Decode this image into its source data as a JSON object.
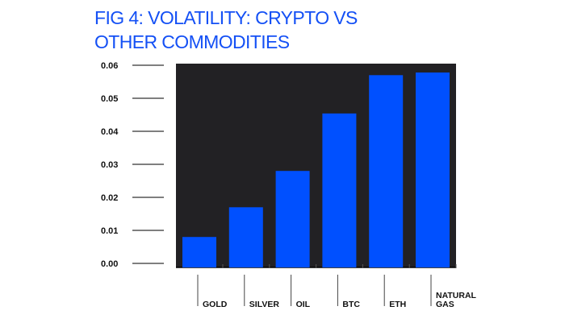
{
  "chart_data": {
    "type": "bar",
    "title_lines": [
      "FIG 4: VOLATILITY: CRYPTO VS",
      "OTHER COMMODITIES"
    ],
    "categories": [
      [
        "GOLD"
      ],
      [
        "SILVER"
      ],
      [
        "OIL"
      ],
      [
        "BTC"
      ],
      [
        "ETH"
      ],
      [
        "NATURAL",
        "GAS"
      ]
    ],
    "values": [
      0.008,
      0.017,
      0.028,
      0.0454,
      0.057,
      0.0578
    ],
    "ylim": [
      0,
      0.06
    ],
    "yticks": [
      "0.00",
      "0.01",
      "0.02",
      "0.03",
      "0.04",
      "0.05",
      "0.06"
    ],
    "xlabel": "",
    "ylabel": "",
    "grid": false,
    "colors": {
      "bar": "#0050ff",
      "plot_background": "#222124",
      "title": "#1450f5"
    }
  }
}
